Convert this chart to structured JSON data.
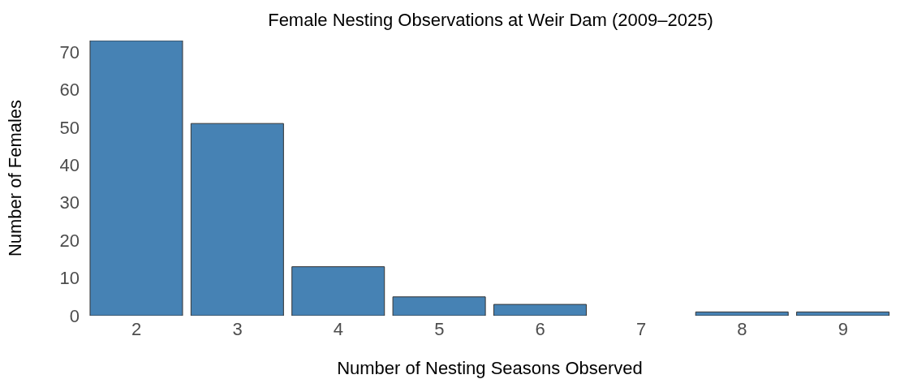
{
  "chart_data": {
    "type": "bar",
    "title": "Female Nesting Observations at Weir Dam (2009–2025)",
    "xlabel": "Number of Nesting Seasons Observed",
    "ylabel": "Number of Females",
    "categories": [
      "2",
      "3",
      "4",
      "5",
      "6",
      "7",
      "8",
      "9"
    ],
    "values": [
      73,
      51,
      13,
      5,
      3,
      0,
      1,
      1
    ],
    "color": "#4682b4",
    "ylim": [
      0,
      73
    ],
    "yticks": [
      0,
      10,
      20,
      30,
      40,
      50,
      60,
      70
    ],
    "grid": false,
    "legend": false
  }
}
